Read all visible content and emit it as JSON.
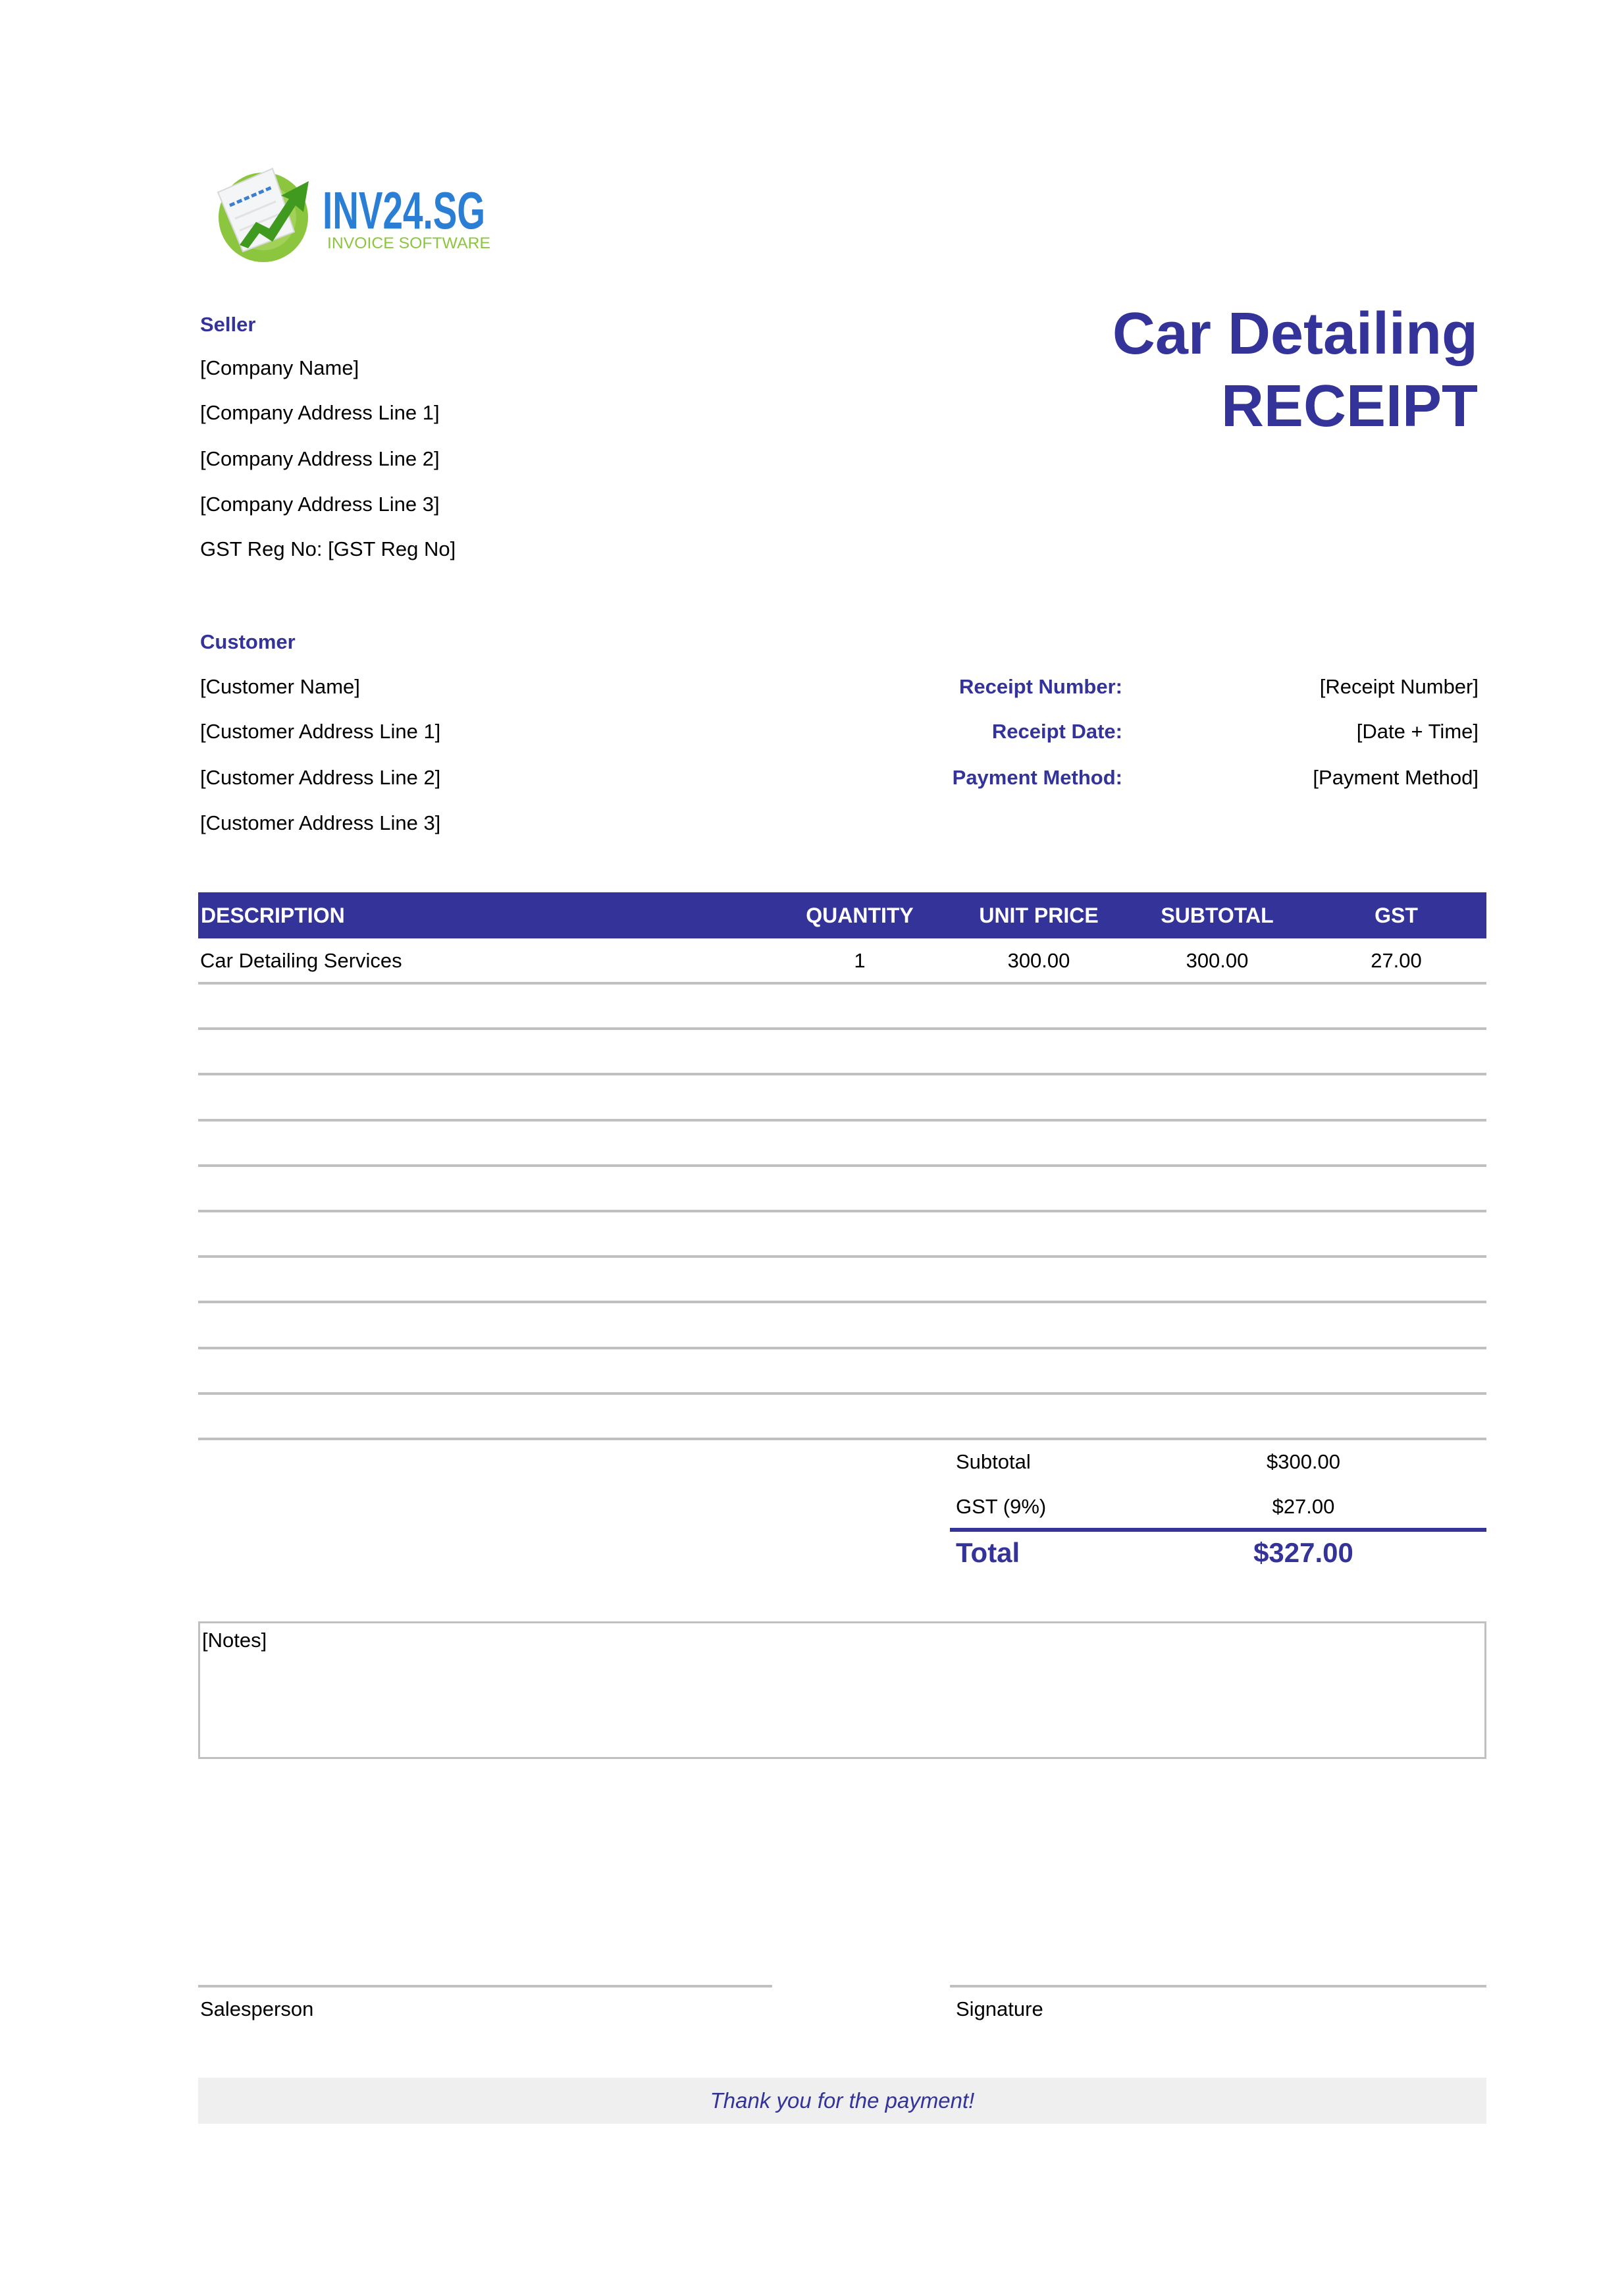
{
  "logo": {
    "brand": "INV24.SG",
    "tagline": "INVOICE SOFTWARE",
    "colors": {
      "brand": "#2a7fd4",
      "tagline": "#8cc63f",
      "circle": "#8cc63f",
      "arrow": "#3f9a1f"
    }
  },
  "colors": {
    "accent": "#333399",
    "rule": "#c0c0c0",
    "footer_bg": "#efefef"
  },
  "title": {
    "line1": "Car Detailing",
    "line2": "RECEIPT"
  },
  "seller": {
    "heading": "Seller",
    "lines": [
      "[Company Name]",
      "[Company Address Line 1]",
      "[Company Address Line 2]",
      "[Company Address Line 3]",
      "GST Reg No: [GST Reg No]"
    ]
  },
  "customer": {
    "heading": "Customer",
    "lines": [
      "[Customer Name]",
      "[Customer Address Line 1]",
      "[Customer Address Line 2]",
      "[Customer Address Line 3]"
    ]
  },
  "receipt_info": [
    {
      "label": "Receipt Number:",
      "value": "[Receipt Number]"
    },
    {
      "label": "Receipt Date:",
      "value": "[Date + Time]"
    },
    {
      "label": "Payment Method:",
      "value": "[Payment Method]"
    }
  ],
  "table": {
    "headers": [
      "DESCRIPTION",
      "QUANTITY",
      "UNIT PRICE",
      "SUBTOTAL",
      "GST"
    ],
    "rows": [
      [
        "Car Detailing Services",
        "1",
        "300.00",
        "300.00",
        "27.00"
      ]
    ]
  },
  "totals": {
    "subtotal_label": "Subtotal",
    "subtotal_value": "$300.00",
    "gst_label": "GST (9%)",
    "gst_value": "$27.00",
    "total_label": "Total",
    "total_value": "$327.00"
  },
  "notes": "[Notes]",
  "signatures": {
    "salesperson": "Salesperson",
    "signature": "Signature"
  },
  "footer": "Thank you for the payment!"
}
